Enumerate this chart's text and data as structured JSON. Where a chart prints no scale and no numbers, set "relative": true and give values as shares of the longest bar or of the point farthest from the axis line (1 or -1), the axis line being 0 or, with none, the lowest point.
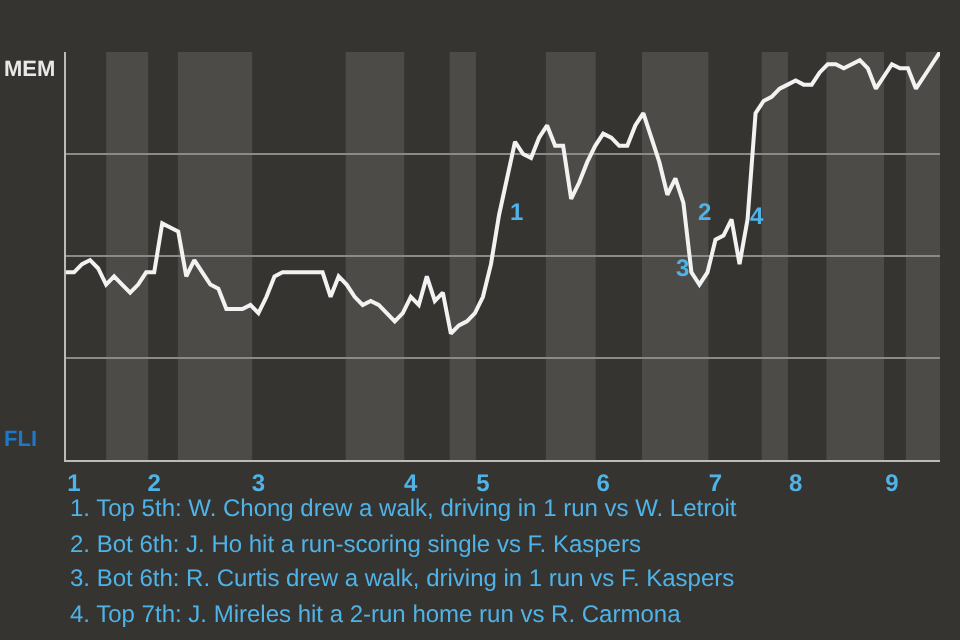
{
  "chart_data": {
    "type": "line",
    "relative": true,
    "grid": "y",
    "marker": "none",
    "line_style": "solid",
    "categories": [
      null,
      "1",
      null,
      null,
      null,
      null,
      null,
      null,
      null,
      null,
      null,
      "2",
      null,
      null,
      null,
      null,
      null,
      null,
      null,
      null,
      null,
      null,
      null,
      null,
      "3",
      null,
      null,
      null,
      null,
      null,
      null,
      null,
      null,
      null,
      null,
      null,
      null,
      null,
      null,
      null,
      null,
      null,
      null,
      "4",
      null,
      null,
      null,
      null,
      null,
      null,
      null,
      null,
      "5",
      null,
      null,
      null,
      null,
      null,
      null,
      null,
      null,
      null,
      null,
      null,
      null,
      null,
      null,
      "6",
      null,
      null,
      null,
      null,
      null,
      null,
      null,
      null,
      null,
      null,
      null,
      null,
      null,
      "7",
      null,
      null,
      null,
      null,
      null,
      null,
      null,
      null,
      null,
      "8",
      null,
      null,
      null,
      null,
      null,
      null,
      null,
      null,
      null,
      null,
      null,
      "9",
      null,
      null,
      null,
      null,
      null,
      null
    ],
    "series": [
      {
        "color": "#f2f2f2",
        "values": [
          0.46,
          0.46,
          0.48,
          0.49,
          0.47,
          0.43,
          0.45,
          0.43,
          0.41,
          0.43,
          0.46,
          0.46,
          0.58,
          0.57,
          0.56,
          0.45,
          0.49,
          0.46,
          0.43,
          0.42,
          0.37,
          0.37,
          0.37,
          0.38,
          0.36,
          0.4,
          0.45,
          0.46,
          0.46,
          0.46,
          0.46,
          0.46,
          0.46,
          0.4,
          0.45,
          0.43,
          0.4,
          0.38,
          0.39,
          0.38,
          0.36,
          0.34,
          0.36,
          0.4,
          0.38,
          0.45,
          0.39,
          0.41,
          0.31,
          0.33,
          0.34,
          0.36,
          0.4,
          0.48,
          0.6,
          0.69,
          0.78,
          0.75,
          0.74,
          0.79,
          0.82,
          0.77,
          0.77,
          0.64,
          0.68,
          0.73,
          0.77,
          0.8,
          0.79,
          0.77,
          0.77,
          0.82,
          0.85,
          0.79,
          0.73,
          0.65,
          0.69,
          0.63,
          0.46,
          0.43,
          0.46,
          0.54,
          0.55,
          0.59,
          0.48,
          0.59,
          0.85,
          0.88,
          0.89,
          0.91,
          0.92,
          0.93,
          0.92,
          0.92,
          0.95,
          0.97,
          0.97,
          0.96,
          0.97,
          0.98,
          0.96,
          0.91,
          0.94,
          0.97,
          0.96,
          0.96,
          0.91,
          0.94,
          0.97,
          1.0
        ]
      }
    ],
    "annotations": [
      "MEM",
      "FLI",
      "1",
      "2",
      "3",
      "4",
      "1. Top 5th: W. Chong drew a walk, driving in 1 run vs W. Letroit",
      "2. Bot 6th: J. Ho hit a run-scoring single vs F. Kaspers",
      "3. Bot 6th: R. Curtis drew a walk, driving in 1 run vs F. Kaspers",
      "4. Top 7th: J. Mireles hit a 2-run home run vs R. Carmona"
    ]
  }
}
